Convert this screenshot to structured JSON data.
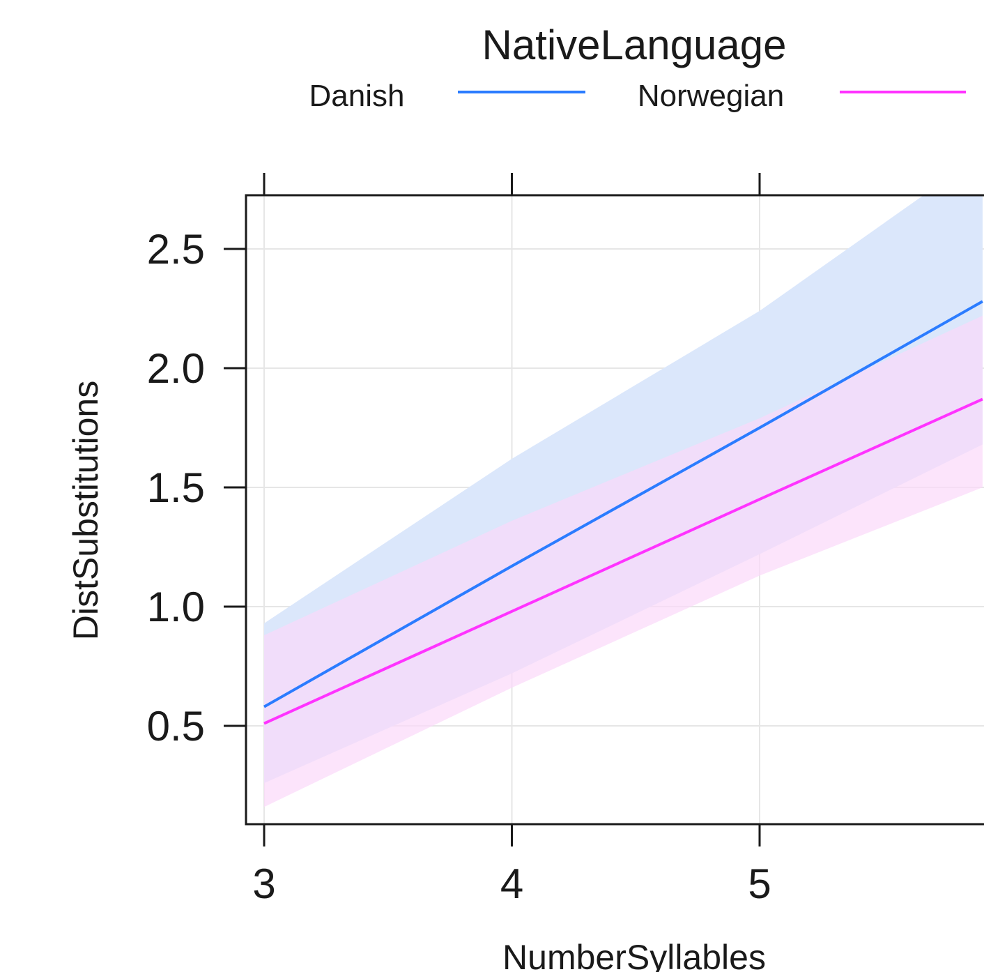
{
  "chart_data": {
    "type": "line",
    "legend": {
      "title": "NativeLanguage",
      "placement": "top",
      "entries": [
        {
          "name": "Danish",
          "color": "#2b7cff"
        },
        {
          "name": "Norwegian",
          "color": "#ff33ff"
        }
      ]
    },
    "xlabel": "NumberSyllables",
    "ylabel": "DistSubstitutions",
    "xticks": [
      "3",
      "4",
      "5"
    ],
    "yticks": [
      "0.5",
      "1.0",
      "1.5",
      "2.0",
      "2.5"
    ],
    "grid": true,
    "series": [
      {
        "name": "Danish",
        "color": "#2b7cff",
        "band_color": "#dbe7fb",
        "x": [
          3,
          4,
          5,
          5.9
        ],
        "y": [
          0.58,
          1.17,
          1.75,
          2.28
        ],
        "lower": [
          0.26,
          0.72,
          1.22,
          1.68
        ],
        "upper": [
          0.93,
          1.62,
          2.24,
          2.9
        ]
      },
      {
        "name": "Norwegian",
        "color": "#ff33ff",
        "band_color": "#fbd9f9",
        "x": [
          3,
          4,
          5,
          5.9
        ],
        "y": [
          0.51,
          0.98,
          1.45,
          1.87
        ],
        "lower": [
          0.16,
          0.66,
          1.13,
          1.5
        ],
        "upper": [
          0.88,
          1.36,
          1.79,
          2.22
        ]
      }
    ]
  }
}
